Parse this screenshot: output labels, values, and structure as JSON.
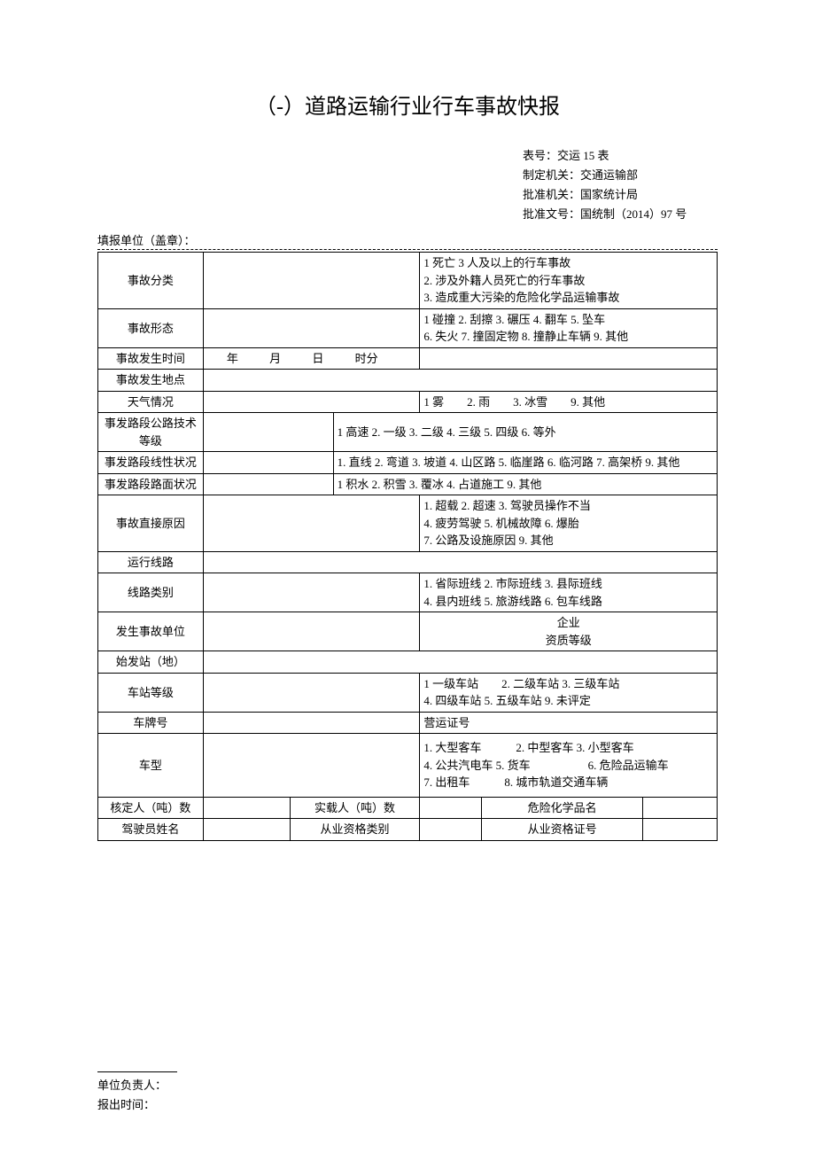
{
  "title": "（-）道路运输行业行车事故快报",
  "meta": {
    "form_no_label": "表号：",
    "form_no": "交运 15 表",
    "org_label": "制定机关：",
    "org": "交通运输部",
    "approve_label": "批准机关：",
    "approve": "国家统计局",
    "doc_label": "批准文号：",
    "doc": "国统制（2014）97 号"
  },
  "filler_label": "填报单位（盖章）：",
  "rows": {
    "accident_class": {
      "label": "事故分类",
      "opts": "1 死亡 3 人及以上的行车事故\n2. 涉及外籍人员死亡的行车事故\n3. 造成重大污染的危险化学品运输事故"
    },
    "accident_form": {
      "label": "事故形态",
      "opts": "1 碰撞 2. 刮擦 3. 碾压 4. 翻车 5. 坠车\n6. 失火 7. 撞固定物 8. 撞静止车辆 9. 其他"
    },
    "time": {
      "label": "事故发生时间",
      "y": "年",
      "m": "月",
      "d": "日",
      "hm": "时分"
    },
    "place": {
      "label": "事故发生地点"
    },
    "weather": {
      "label": "天气情况",
      "opts": "1 雾　　2. 雨　　3. 冰雪　　9. 其他"
    },
    "road_grade": {
      "label": "事发路段公路技术等级",
      "opts": "1 高速 2. 一级 3. 二级 4. 三级 5. 四级 6. 等外"
    },
    "road_line": {
      "label": "事发路段线性状况",
      "opts": "1. 直线 2. 弯道 3. 坡道 4. 山区路 5. 临崖路 6. 临河路 7. 高架桥 9. 其他"
    },
    "road_surface": {
      "label": "事发路段路面状况",
      "opts": "1 积水 2. 积雪 3. 覆冰 4. 占道施工 9. 其他"
    },
    "cause": {
      "label": "事故直接原因",
      "opts": "1. 超载 2. 超速 3. 驾驶员操作不当\n4. 疲劳驾驶 5. 机械故障 6. 爆胎\n7. 公路及设施原因 9. 其他"
    },
    "route": {
      "label": "运行线路"
    },
    "route_type": {
      "label": "线路类别",
      "opts": "1. 省际班线 2. 市际班线 3. 县际班线\n4. 县内班线 5. 旅游线路 6. 包车线路"
    },
    "unit": {
      "label": "发生事故单位",
      "c1": "企业",
      "c2": "资质等级"
    },
    "start": {
      "label": "始发站（地）"
    },
    "station_grade": {
      "label": "车站等级",
      "opts": "1 一级车站　　2. 二级车站 3. 三级车站\n4. 四级车站 5. 五级车站 9. 未评定"
    },
    "plate": {
      "label": "车牌号",
      "cert": "营运证号"
    },
    "vehicle": {
      "label": "车型",
      "opts": "1. 大型客车　　　2. 中型客车 3. 小型客车\n4. 公共汽电车 5. 货车　　　　　6. 危险品运输车\n7. 出租车　　　8. 城市轨道交通车辆"
    },
    "capacity": {
      "label": "核定人（吨）数",
      "actual": "实载人（吨）数",
      "chem": "危险化学品名"
    },
    "driver": {
      "label": "驾驶员姓名",
      "qual": "从业资格类别",
      "cert": "从业资格证号"
    }
  },
  "footer": {
    "principal": "单位负责人：",
    "time": "报出时间："
  }
}
